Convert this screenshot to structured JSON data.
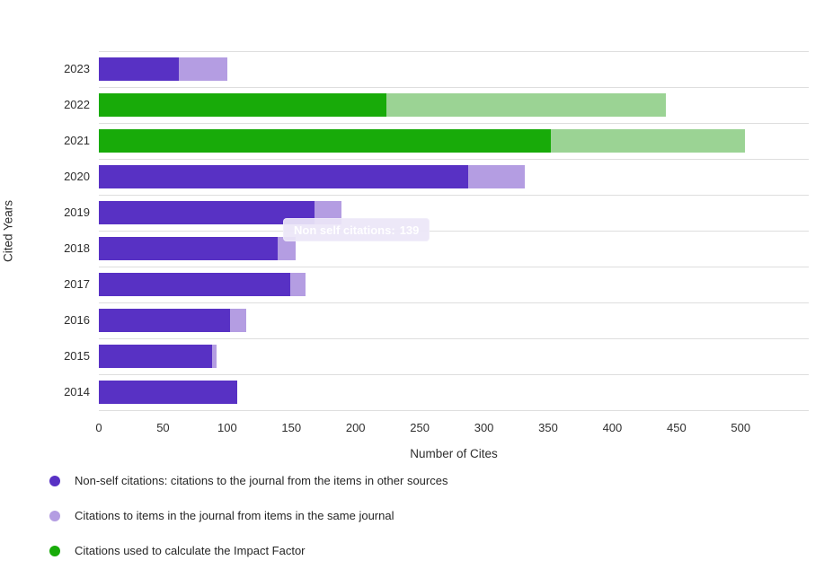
{
  "chart_data": {
    "type": "bar",
    "orientation": "horizontal",
    "stacked": true,
    "title": "",
    "xlabel": "Number of Cites",
    "ylabel": "Cited Years",
    "x_ticks": [
      0,
      50,
      100,
      150,
      200,
      250,
      300,
      350,
      400,
      450,
      500
    ],
    "x_max_units": 553,
    "grid": "row-separators",
    "colors": {
      "non_self": "#5831c4",
      "self": "#b49de2",
      "impact_factor": "#18ab09",
      "impact_factor_light": "#9bd394",
      "grid_line": "#dedede"
    },
    "rows": [
      {
        "year": "2023",
        "segments": [
          {
            "name": "non-self-citations",
            "value": 62,
            "color_key": "non_self"
          },
          {
            "name": "self-citations",
            "value": 38,
            "color_key": "self"
          }
        ]
      },
      {
        "year": "2022",
        "segments": [
          {
            "name": "impact-factor-citations",
            "value": 224,
            "color_key": "impact_factor"
          },
          {
            "name": "impact-factor-citations-light",
            "value": 218,
            "color_key": "impact_factor_light"
          }
        ]
      },
      {
        "year": "2021",
        "segments": [
          {
            "name": "impact-factor-citations",
            "value": 352,
            "color_key": "impact_factor"
          },
          {
            "name": "impact-factor-citations-light",
            "value": 151,
            "color_key": "impact_factor_light"
          }
        ]
      },
      {
        "year": "2020",
        "segments": [
          {
            "name": "non-self-citations",
            "value": 288,
            "color_key": "non_self"
          },
          {
            "name": "self-citations",
            "value": 44,
            "color_key": "self"
          }
        ]
      },
      {
        "year": "2019",
        "segments": [
          {
            "name": "non-self-citations",
            "value": 168,
            "color_key": "non_self"
          },
          {
            "name": "self-citations",
            "value": 21,
            "color_key": "self"
          }
        ]
      },
      {
        "year": "2018",
        "segments": [
          {
            "name": "non-self-citations",
            "value": 139,
            "color_key": "non_self"
          },
          {
            "name": "self-citations",
            "value": 14,
            "color_key": "self",
            "hovered": true
          }
        ]
      },
      {
        "year": "2017",
        "segments": [
          {
            "name": "non-self-citations",
            "value": 149,
            "color_key": "non_self"
          },
          {
            "name": "self-citations",
            "value": 12,
            "color_key": "self"
          }
        ]
      },
      {
        "year": "2016",
        "segments": [
          {
            "name": "non-self-citations",
            "value": 102,
            "color_key": "non_self"
          },
          {
            "name": "self-citations",
            "value": 13,
            "color_key": "self"
          }
        ]
      },
      {
        "year": "2015",
        "segments": [
          {
            "name": "non-self-citations",
            "value": 88,
            "color_key": "non_self"
          },
          {
            "name": "self-citations",
            "value": 4,
            "color_key": "self"
          }
        ]
      },
      {
        "year": "2014",
        "segments": [
          {
            "name": "non-self-citations",
            "value": 108,
            "color_key": "non_self"
          },
          {
            "name": "self-citations",
            "value": 0,
            "color_key": "self"
          }
        ]
      }
    ],
    "legend": [
      {
        "label": "Non-self citations: citations to the journal from the items in other sources",
        "color_key": "non_self"
      },
      {
        "label": "Citations to items in the journal from items in the same journal",
        "color_key": "self"
      },
      {
        "label": "Citations used to calculate the Impact Factor",
        "color_key": "impact_factor"
      }
    ]
  },
  "axes": {
    "xlabel": "Number of Cites",
    "ylabel": "Cited Years"
  },
  "tooltip": {
    "label": "Non self citations:",
    "value": "139"
  }
}
